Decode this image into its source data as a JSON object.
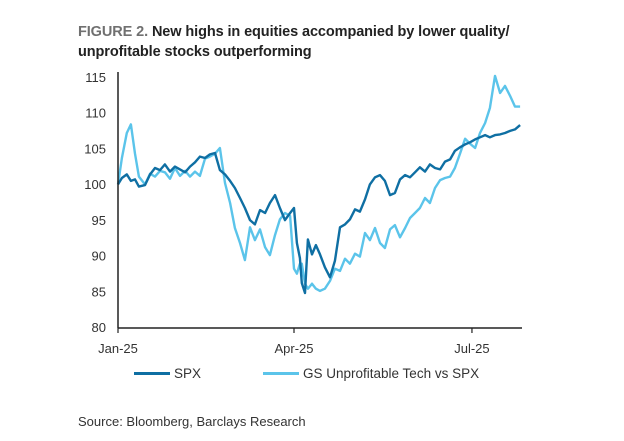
{
  "figure": {
    "label": "FIGURE 2.",
    "title": "New highs in equities accompanied by lower quality/ unprofitable stocks outperforming",
    "source": "Source: Bloomberg, Barclays Research"
  },
  "chart_data": {
    "type": "line",
    "title": "New highs in equities accompanied by lower quality/ unprofitable stocks outperforming",
    "xlabel": "",
    "ylabel": "",
    "ylim": [
      80,
      115
    ],
    "yticks": [
      80,
      85,
      90,
      95,
      100,
      105,
      110,
      115
    ],
    "xticks": [
      {
        "label": "Jan-25",
        "day": 0
      },
      {
        "label": "Apr-25",
        "day": 90
      },
      {
        "label": "Jul-25",
        "day": 181
      }
    ],
    "xlim_days": [
      0,
      206
    ],
    "grid": false,
    "legend_position": "bottom",
    "x_days": [
      0,
      2,
      4.5,
      6.6,
      8.7,
      10.7,
      13.8,
      16.4,
      18.9,
      21.5,
      24,
      26.6,
      29.1,
      31.7,
      34.3,
      36.8,
      39.4,
      41.9,
      44.5,
      47,
      49.6,
      52.1,
      54.7,
      57.3,
      59.8,
      62.4,
      64.9,
      67.5,
      70,
      72.6,
      75.2,
      77.7,
      80.3,
      82.8,
      85.4,
      88,
      90,
      91.5,
      93,
      94,
      95.6,
      97.1,
      99.2,
      101.2,
      103.3,
      105.8,
      108.4,
      110.9,
      113.5,
      116.1,
      118.6,
      121.2,
      123.7,
      126.3,
      128.8,
      131.4,
      134,
      136.5,
      139.1,
      141.6,
      144.2,
      146.8,
      149.3,
      151.9,
      154.4,
      157,
      159.5,
      162.1,
      164.7,
      167.2,
      169.8,
      172.3,
      174.9,
      177.5,
      180,
      182.6,
      185.1,
      187.7,
      190.2,
      192.8,
      195.4,
      197.9,
      200.5,
      203,
      205.6
    ],
    "series": [
      {
        "name": "SPX",
        "color": "#0f6fa3",
        "values": [
          100.1,
          101.0,
          101.5,
          100.6,
          100.8,
          99.8,
          100.0,
          101.5,
          102.4,
          102.1,
          102.9,
          101.9,
          102.6,
          102.2,
          101.8,
          102.6,
          103.2,
          104.0,
          103.8,
          104.3,
          104.5,
          102.1,
          101.5,
          100.6,
          99.6,
          98.2,
          96.8,
          95.1,
          94.5,
          96.5,
          96.1,
          97.5,
          98.6,
          96.8,
          95.1,
          96.1,
          96.8,
          91.9,
          89.8,
          86.3,
          84.9,
          92.4,
          90.3,
          91.6,
          90.3,
          88.5,
          87.1,
          89.4,
          94.1,
          94.5,
          95.2,
          96.6,
          96.3,
          98.0,
          100.1,
          101.1,
          101.4,
          100.6,
          98.6,
          98.9,
          100.8,
          101.4,
          101.1,
          101.8,
          102.5,
          101.9,
          102.9,
          102.4,
          102.2,
          103.3,
          103.6,
          104.8,
          105.3,
          105.7,
          106.0,
          106.4,
          106.7,
          107.0,
          106.7,
          107.0,
          107.1,
          107.3,
          107.6,
          107.8,
          108.4
        ]
      },
      {
        "name": "GS Unprofitable Tech vs SPX",
        "color": "#5bc4ea",
        "values": [
          100.1,
          103.8,
          107.3,
          108.5,
          104.4,
          101.2,
          100.1,
          101.6,
          101.2,
          102.0,
          101.8,
          100.9,
          102.4,
          101.3,
          102.0,
          101.2,
          101.9,
          101.3,
          103.7,
          104.0,
          104.4,
          105.2,
          100.3,
          97.5,
          94.0,
          91.9,
          89.5,
          94.1,
          92.3,
          93.8,
          91.3,
          90.2,
          93.0,
          95.2,
          96.1,
          95.7,
          88.3,
          87.6,
          89.0,
          89.0,
          86.2,
          85.5,
          86.2,
          85.5,
          85.2,
          85.5,
          86.6,
          88.3,
          88.0,
          89.7,
          89.0,
          90.4,
          90.0,
          93.3,
          92.3,
          94.0,
          91.9,
          91.2,
          93.8,
          94.4,
          92.7,
          94.0,
          95.4,
          96.1,
          96.8,
          98.2,
          97.5,
          99.6,
          100.7,
          101.0,
          101.2,
          102.4,
          104.4,
          106.5,
          105.8,
          105.2,
          107.3,
          108.7,
          110.8,
          115.3,
          112.9,
          113.9,
          112.5,
          111.0,
          111.0
        ]
      }
    ]
  },
  "legend": {
    "items": [
      {
        "label": "SPX",
        "color": "#0f6fa3"
      },
      {
        "label": "GS Unprofitable Tech vs SPX",
        "color": "#5bc4ea"
      }
    ]
  }
}
